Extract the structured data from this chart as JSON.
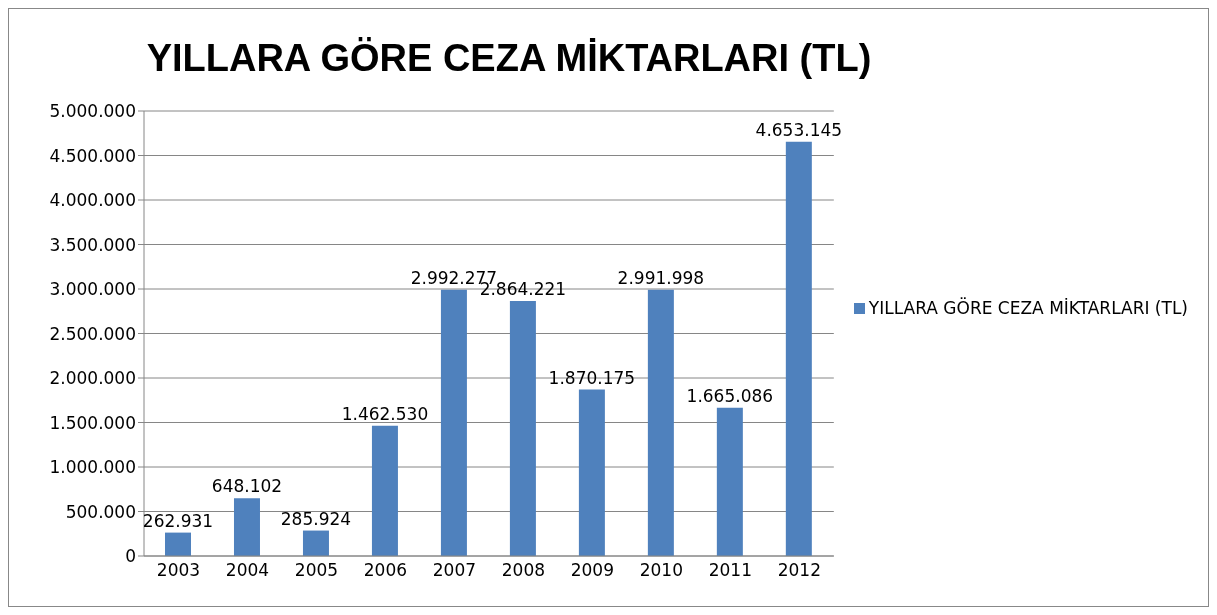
{
  "chart_data": {
    "type": "bar",
    "title": "YILLARA GÖRE CEZA MİKTARLARI (TL)",
    "categories": [
      "2003",
      "2004",
      "2005",
      "2006",
      "2007",
      "2008",
      "2009",
      "2010",
      "2011",
      "2012"
    ],
    "series": [
      {
        "name": "YILLARA GÖRE CEZA MİKTARLARI (TL)",
        "color": "#4f81bd",
        "values": [
          262931,
          648102,
          285924,
          1462530,
          2992277,
          2864221,
          1870175,
          2991998,
          1665086,
          4653145
        ],
        "value_labels": [
          "262.931",
          "648.102",
          "285.924",
          "1.462.530",
          "2.992.277",
          "2.864.221",
          "1.870.175",
          "2.991.998",
          "1.665.086",
          "4.653.145"
        ]
      }
    ],
    "ylim": [
      0,
      5000000
    ],
    "yticks": [
      {
        "value": 0,
        "label": "0"
      },
      {
        "value": 500000,
        "label": "500.000"
      },
      {
        "value": 1000000,
        "label": "1.000.000"
      },
      {
        "value": 1500000,
        "label": "1.500.000"
      },
      {
        "value": 2000000,
        "label": "2.000.000"
      },
      {
        "value": 2500000,
        "label": "2.500.000"
      },
      {
        "value": 3000000,
        "label": "3.000.000"
      },
      {
        "value": 3500000,
        "label": "3.500.000"
      },
      {
        "value": 4000000,
        "label": "4.000.000"
      },
      {
        "value": 4500000,
        "label": "4.500.000"
      },
      {
        "value": 5000000,
        "label": "5.000.000"
      }
    ],
    "grid": "y",
    "legend": "right"
  }
}
